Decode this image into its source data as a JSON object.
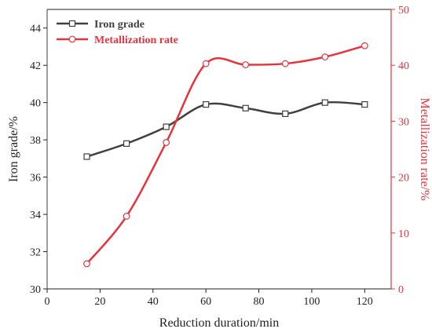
{
  "chart_data": {
    "type": "line",
    "xlabel": "Reduction duration/min",
    "xlim": [
      0,
      130
    ],
    "xticks": [
      0,
      20,
      40,
      60,
      80,
      100,
      120
    ],
    "x": [
      15,
      30,
      45,
      60,
      75,
      90,
      105,
      120
    ],
    "y_left": {
      "label": "Iron grade/%",
      "lim": [
        30,
        45
      ],
      "ticks": [
        30,
        32,
        34,
        36,
        38,
        40,
        42,
        44
      ],
      "color": "#404040"
    },
    "y_right": {
      "label": "Metallization rate/%",
      "lim": [
        0,
        50
      ],
      "ticks": [
        0,
        10,
        20,
        30,
        40,
        50
      ],
      "color": "#e8333c"
    },
    "series": [
      {
        "name": "Iron grade",
        "axis": "left",
        "marker": "square",
        "color": "#404040",
        "values": [
          37.1,
          37.8,
          38.7,
          39.9,
          39.7,
          39.4,
          40.0,
          39.9
        ]
      },
      {
        "name": "Metallization rate",
        "axis": "right",
        "marker": "circle",
        "color": "#e8333c",
        "values": [
          4.5,
          13.0,
          26.2,
          40.3,
          40.1,
          40.3,
          41.5,
          43.5
        ]
      }
    ],
    "legend_position": "top-left",
    "grid": false
  }
}
